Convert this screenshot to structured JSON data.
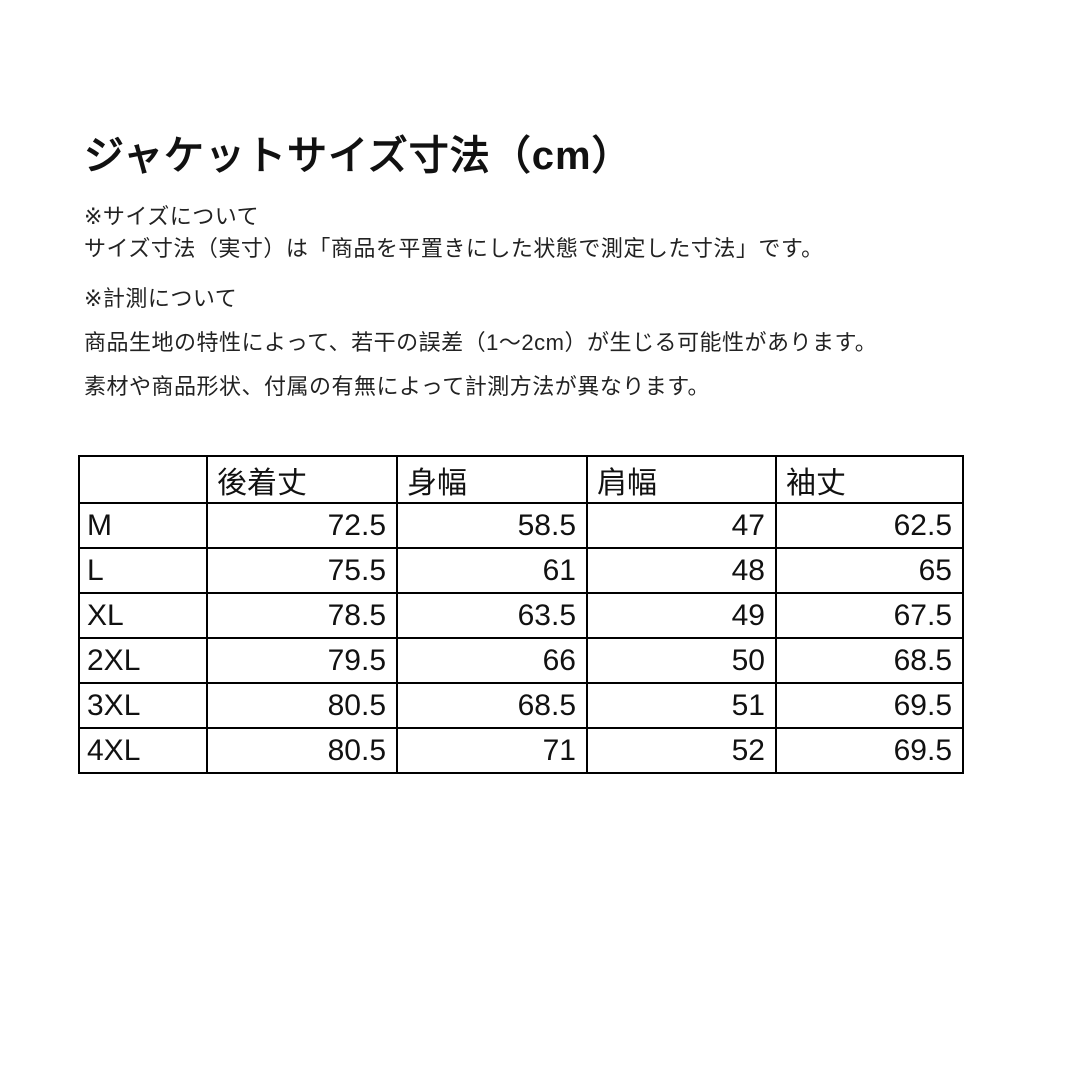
{
  "page": {
    "title": "ジャケットサイズ寸法（cm）",
    "sections": [
      {
        "heading": "※サイズについて",
        "lines": [
          "サイズ寸法（実寸）は「商品を平置きにした状態で測定した寸法」です。"
        ]
      },
      {
        "heading": "※計測について",
        "lines": [
          "商品生地の特性によって、若干の誤差（1～2cm）が生じる可能性があります。",
          "素材や商品形状、付属の有無によって計測方法が異なります。"
        ]
      }
    ]
  },
  "size_table": {
    "columns": [
      "",
      "後着丈",
      "身幅",
      "肩幅",
      "袖丈"
    ],
    "rows": [
      {
        "size": "M",
        "values": [
          "72.5",
          "58.5",
          "47",
          "62.5"
        ]
      },
      {
        "size": "L",
        "values": [
          "75.5",
          "61",
          "48",
          "65"
        ]
      },
      {
        "size": "XL",
        "values": [
          "78.5",
          "63.5",
          "49",
          "67.5"
        ]
      },
      {
        "size": "2XL",
        "values": [
          "79.5",
          "66",
          "50",
          "68.5"
        ]
      },
      {
        "size": "3XL",
        "values": [
          "80.5",
          "68.5",
          "51",
          "69.5"
        ]
      },
      {
        "size": "4XL",
        "values": [
          "80.5",
          "71",
          "52",
          "69.5"
        ]
      }
    ]
  },
  "colors": {
    "background": "#ffffff",
    "text": "#1a1a1a",
    "table_border": "#000000"
  }
}
